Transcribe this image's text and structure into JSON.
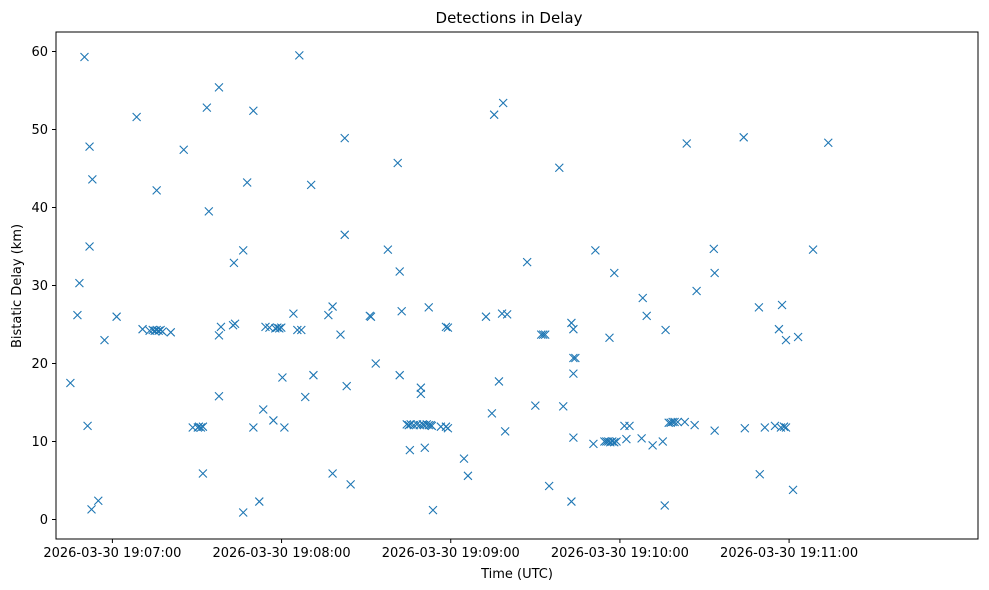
{
  "chart_data": {
    "type": "scatter",
    "title": "Detections in Delay",
    "xlabel": "Time (UTC)",
    "ylabel": "Bistatic Delay (km)",
    "x_is_time": true,
    "xlim": [
      "2026-03-30 19:06:40",
      "2026-03-30 19:12:07"
    ],
    "ylim": [
      -2.5,
      62.5
    ],
    "xticks": [
      {
        "value": "2026-03-30 19:07:00",
        "label": "2026-03-30 19:07:00"
      },
      {
        "value": "2026-03-30 19:08:00",
        "label": "2026-03-30 19:08:00"
      },
      {
        "value": "2026-03-30 19:09:00",
        "label": "2026-03-30 19:09:00"
      },
      {
        "value": "2026-03-30 19:10:00",
        "label": "2026-03-30 19:10:00"
      },
      {
        "value": "2026-03-30 19:11:00",
        "label": "2026-03-30 19:11:00"
      }
    ],
    "yticks": [
      {
        "value": 0,
        "label": "0"
      },
      {
        "value": 10,
        "label": "10"
      },
      {
        "value": 20,
        "label": "20"
      },
      {
        "value": 30,
        "label": "30"
      },
      {
        "value": 40,
        "label": "40"
      },
      {
        "value": 50,
        "label": "50"
      },
      {
        "value": 60,
        "label": "60"
      }
    ],
    "grid": false,
    "marker": "x",
    "marker_color": "#1f77b4",
    "series": [
      {
        "points": [
          [
            "2026-03-30 19:06:45.1",
            17.5
          ],
          [
            "2026-03-30 19:06:47.6",
            26.2
          ],
          [
            "2026-03-30 19:06:48.3",
            30.3
          ],
          [
            "2026-03-30 19:06:50.1",
            59.3
          ],
          [
            "2026-03-30 19:06:51.2",
            12.0
          ],
          [
            "2026-03-30 19:06:51.9",
            47.8
          ],
          [
            "2026-03-30 19:06:51.9",
            35.0
          ],
          [
            "2026-03-30 19:06:52.6",
            1.3
          ],
          [
            "2026-03-30 19:06:52.9",
            43.6
          ],
          [
            "2026-03-30 19:06:55.0",
            2.4
          ],
          [
            "2026-03-30 19:06:57.2",
            23.0
          ],
          [
            "2026-03-30 19:07:01.5",
            26.0
          ],
          [
            "2026-03-30 19:07:08.6",
            51.6
          ],
          [
            "2026-03-30 19:07:10.7",
            24.4
          ],
          [
            "2026-03-30 19:07:13.2",
            24.2
          ],
          [
            "2026-03-30 19:07:14.3",
            24.3
          ],
          [
            "2026-03-30 19:07:15.0",
            24.2
          ],
          [
            "2026-03-30 19:07:15.7",
            24.3
          ],
          [
            "2026-03-30 19:07:16.4",
            24.2
          ],
          [
            "2026-03-30 19:07:17.1",
            24.3
          ],
          [
            "2026-03-30 19:07:17.8",
            24.1
          ],
          [
            "2026-03-30 19:07:15.7",
            42.2
          ],
          [
            "2026-03-30 19:07:20.7",
            24.0
          ],
          [
            "2026-03-30 19:07:25.3",
            47.4
          ],
          [
            "2026-03-30 19:07:28.5",
            11.8
          ],
          [
            "2026-03-30 19:07:30.3",
            11.8
          ],
          [
            "2026-03-30 19:07:30.7",
            11.9
          ],
          [
            "2026-03-30 19:07:31.4",
            11.8
          ],
          [
            "2026-03-30 19:07:32.1",
            11.9
          ],
          [
            "2026-03-30 19:07:32.1",
            5.9
          ],
          [
            "2026-03-30 19:07:33.5",
            52.8
          ],
          [
            "2026-03-30 19:07:34.2",
            39.5
          ],
          [
            "2026-03-30 19:07:37.8",
            55.4
          ],
          [
            "2026-03-30 19:07:37.8",
            23.6
          ],
          [
            "2026-03-30 19:07:37.8",
            15.8
          ],
          [
            "2026-03-30 19:07:38.5",
            24.7
          ],
          [
            "2026-03-30 19:07:42.8",
            24.9
          ],
          [
            "2026-03-30 19:07:43.5",
            25.1
          ],
          [
            "2026-03-30 19:07:43.1",
            32.9
          ],
          [
            "2026-03-30 19:07:46.4",
            34.5
          ],
          [
            "2026-03-30 19:07:47.8",
            43.2
          ],
          [
            "2026-03-30 19:07:46.4",
            0.9
          ],
          [
            "2026-03-30 19:07:50.0",
            52.4
          ],
          [
            "2026-03-30 19:07:50.0",
            11.8
          ],
          [
            "2026-03-30 19:07:52.1",
            2.3
          ],
          [
            "2026-03-30 19:07:53.5",
            14.1
          ],
          [
            "2026-03-30 19:07:54.3",
            24.7
          ],
          [
            "2026-03-30 19:07:55.7",
            24.6
          ],
          [
            "2026-03-30 19:07:57.1",
            12.7
          ],
          [
            "2026-03-30 19:07:57.8",
            24.5
          ],
          [
            "2026-03-30 19:07:58.5",
            24.6
          ],
          [
            "2026-03-30 19:07:59.2",
            24.5
          ],
          [
            "2026-03-30 19:07:59.9",
            24.6
          ],
          [
            "2026-03-30 19:08:00.3",
            18.2
          ],
          [
            "2026-03-30 19:08:01.0",
            11.8
          ],
          [
            "2026-03-30 19:08:04.2",
            26.4
          ],
          [
            "2026-03-30 19:08:05.6",
            24.3
          ],
          [
            "2026-03-30 19:08:06.3",
            59.5
          ],
          [
            "2026-03-30 19:08:07.0",
            24.3
          ],
          [
            "2026-03-30 19:08:08.4",
            15.7
          ],
          [
            "2026-03-30 19:08:10.5",
            42.9
          ],
          [
            "2026-03-30 19:08:11.3",
            18.5
          ],
          [
            "2026-03-30 19:08:16.6",
            26.2
          ],
          [
            "2026-03-30 19:08:18.1",
            27.3
          ],
          [
            "2026-03-30 19:08:18.1",
            5.9
          ],
          [
            "2026-03-30 19:08:20.9",
            23.7
          ],
          [
            "2026-03-30 19:08:22.4",
            48.9
          ],
          [
            "2026-03-30 19:08:22.4",
            36.5
          ],
          [
            "2026-03-30 19:08:23.1",
            17.1
          ],
          [
            "2026-03-30 19:08:24.5",
            4.5
          ],
          [
            "2026-03-30 19:08:31.3",
            26.1
          ],
          [
            "2026-03-30 19:08:31.7",
            26.0
          ],
          [
            "2026-03-30 19:08:33.4",
            20.0
          ],
          [
            "2026-03-30 19:08:37.7",
            34.6
          ],
          [
            "2026-03-30 19:08:41.2",
            45.7
          ],
          [
            "2026-03-30 19:08:41.9",
            31.8
          ],
          [
            "2026-03-30 19:08:41.9",
            18.5
          ],
          [
            "2026-03-30 19:08:42.6",
            26.7
          ],
          [
            "2026-03-30 19:08:44.4",
            12.2
          ],
          [
            "2026-03-30 19:08:45.1",
            12.1
          ],
          [
            "2026-03-30 19:08:45.5",
            8.9
          ],
          [
            "2026-03-30 19:08:45.8",
            12.2
          ],
          [
            "2026-03-30 19:08:46.9",
            12.1
          ],
          [
            "2026-03-30 19:08:48.0",
            12.2
          ],
          [
            "2026-03-30 19:08:49.0",
            12.1
          ],
          [
            "2026-03-30 19:08:49.4",
            16.9
          ],
          [
            "2026-03-30 19:08:49.4",
            16.1
          ],
          [
            "2026-03-30 19:08:50.1",
            12.2
          ],
          [
            "2026-03-30 19:08:50.5",
            12.1
          ],
          [
            "2026-03-30 19:08:50.8",
            9.2
          ],
          [
            "2026-03-30 19:08:51.5",
            12.2
          ],
          [
            "2026-03-30 19:08:52.2",
            12.1
          ],
          [
            "2026-03-30 19:08:52.2",
            27.2
          ],
          [
            "2026-03-30 19:08:52.9",
            12.1
          ],
          [
            "2026-03-30 19:08:53.3",
            12.0
          ],
          [
            "2026-03-30 19:08:53.7",
            1.2
          ],
          [
            "2026-03-30 19:08:56.5",
            11.9
          ],
          [
            "2026-03-30 19:08:58.3",
            24.7
          ],
          [
            "2026-03-30 19:08:58.3",
            11.9
          ],
          [
            "2026-03-30 19:08:59.0",
            24.6
          ],
          [
            "2026-03-30 19:08:59.0",
            11.7
          ],
          [
            "2026-03-30 19:09:04.7",
            7.8
          ],
          [
            "2026-03-30 19:09:06.1",
            5.6
          ],
          [
            "2026-03-30 19:09:12.5",
            26.0
          ],
          [
            "2026-03-30 19:09:14.6",
            13.6
          ],
          [
            "2026-03-30 19:09:15.4",
            51.9
          ],
          [
            "2026-03-30 19:09:17.1",
            17.7
          ],
          [
            "2026-03-30 19:09:18.2",
            26.4
          ],
          [
            "2026-03-30 19:09:18.6",
            53.4
          ],
          [
            "2026-03-30 19:09:19.3",
            11.3
          ],
          [
            "2026-03-30 19:09:20.0",
            26.3
          ],
          [
            "2026-03-30 19:09:27.1",
            33.0
          ],
          [
            "2026-03-30 19:09:30.0",
            14.6
          ],
          [
            "2026-03-30 19:09:32.1",
            23.7
          ],
          [
            "2026-03-30 19:09:32.8",
            23.7
          ],
          [
            "2026-03-30 19:09:33.5",
            23.7
          ],
          [
            "2026-03-30 19:09:34.9",
            4.3
          ],
          [
            "2026-03-30 19:09:38.5",
            45.1
          ],
          [
            "2026-03-30 19:09:39.9",
            14.5
          ],
          [
            "2026-03-30 19:09:42.8",
            25.2
          ],
          [
            "2026-03-30 19:09:43.5",
            24.4
          ],
          [
            "2026-03-30 19:09:43.5",
            20.7
          ],
          [
            "2026-03-30 19:09:44.2",
            20.7
          ],
          [
            "2026-03-30 19:09:43.5",
            18.7
          ],
          [
            "2026-03-30 19:09:43.5",
            10.5
          ],
          [
            "2026-03-30 19:09:42.8",
            2.3
          ],
          [
            "2026-03-30 19:09:50.6",
            9.7
          ],
          [
            "2026-03-30 19:09:51.3",
            34.5
          ],
          [
            "2026-03-30 19:09:54.5",
            10.0
          ],
          [
            "2026-03-30 19:09:55.2",
            10.0
          ],
          [
            "2026-03-30 19:09:55.9",
            10.0
          ],
          [
            "2026-03-30 19:09:56.3",
            23.3
          ],
          [
            "2026-03-30 19:09:56.6",
            9.9
          ],
          [
            "2026-03-30 19:09:57.3",
            10.0
          ],
          [
            "2026-03-30 19:09:58.0",
            9.9
          ],
          [
            "2026-03-30 19:09:58.0",
            31.6
          ],
          [
            "2026-03-30 19:09:58.8",
            10.0
          ],
          [
            "2026-03-30 19:10:01.6",
            12.0
          ],
          [
            "2026-03-30 19:10:02.3",
            10.3
          ],
          [
            "2026-03-30 19:10:03.4",
            12.0
          ],
          [
            "2026-03-30 19:10:07.7",
            10.4
          ],
          [
            "2026-03-30 19:10:08.1",
            28.4
          ],
          [
            "2026-03-30 19:10:09.5",
            26.1
          ],
          [
            "2026-03-30 19:10:11.6",
            9.5
          ],
          [
            "2026-03-30 19:10:15.2",
            10.0
          ],
          [
            "2026-03-30 19:10:15.9",
            1.8
          ],
          [
            "2026-03-30 19:10:16.2",
            24.3
          ],
          [
            "2026-03-30 19:10:17.3",
            12.4
          ],
          [
            "2026-03-30 19:10:18.0",
            12.4
          ],
          [
            "2026-03-30 19:10:18.7",
            12.5
          ],
          [
            "2026-03-30 19:10:19.4",
            12.5
          ],
          [
            "2026-03-30 19:10:20.5",
            12.5
          ],
          [
            "2026-03-30 19:10:23.0",
            12.5
          ],
          [
            "2026-03-30 19:10:23.7",
            48.2
          ],
          [
            "2026-03-30 19:10:26.5",
            12.1
          ],
          [
            "2026-03-30 19:10:27.2",
            29.3
          ],
          [
            "2026-03-30 19:10:33.3",
            34.7
          ],
          [
            "2026-03-30 19:10:33.6",
            31.6
          ],
          [
            "2026-03-30 19:10:33.6",
            11.4
          ],
          [
            "2026-03-30 19:10:43.9",
            49.0
          ],
          [
            "2026-03-30 19:10:44.3",
            11.7
          ],
          [
            "2026-03-30 19:10:49.3",
            27.2
          ],
          [
            "2026-03-30 19:10:49.6",
            5.8
          ],
          [
            "2026-03-30 19:10:51.4",
            11.8
          ],
          [
            "2026-03-30 19:10:55.0",
            12.0
          ],
          [
            "2026-03-30 19:10:56.4",
            24.4
          ],
          [
            "2026-03-30 19:10:57.1",
            11.8
          ],
          [
            "2026-03-30 19:10:57.5",
            27.5
          ],
          [
            "2026-03-30 19:10:58.2",
            11.9
          ],
          [
            "2026-03-30 19:10:58.9",
            11.8
          ],
          [
            "2026-03-30 19:10:58.9",
            23.0
          ],
          [
            "2026-03-30 19:11:01.4",
            3.8
          ],
          [
            "2026-03-30 19:11:03.2",
            23.4
          ],
          [
            "2026-03-30 19:11:08.5",
            34.6
          ],
          [
            "2026-03-30 19:11:13.9",
            48.3
          ]
        ]
      }
    ]
  }
}
